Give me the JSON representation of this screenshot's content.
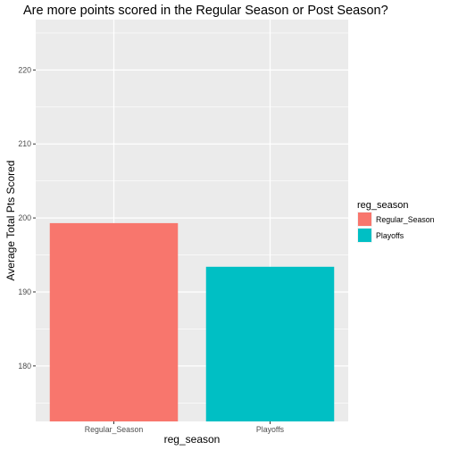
{
  "chart_data": {
    "type": "bar",
    "title": "Are more points scored in the Regular Season or Post Season?",
    "xlabel": "reg_season",
    "ylabel": "Average Total Pts Scored",
    "categories": [
      "Regular_Season",
      "Playoffs"
    ],
    "values": [
      199.3,
      193.4
    ],
    "colors": [
      "#F8766D",
      "#00BFC4"
    ],
    "ylim": [
      172.5,
      226.8
    ],
    "yticks": [
      180,
      190,
      200,
      210,
      220
    ],
    "grid": true,
    "panel_background": "#EBEBEB",
    "legend": {
      "title": "reg_season",
      "position": "right",
      "entries": [
        "Regular_Season",
        "Playoffs"
      ]
    }
  }
}
